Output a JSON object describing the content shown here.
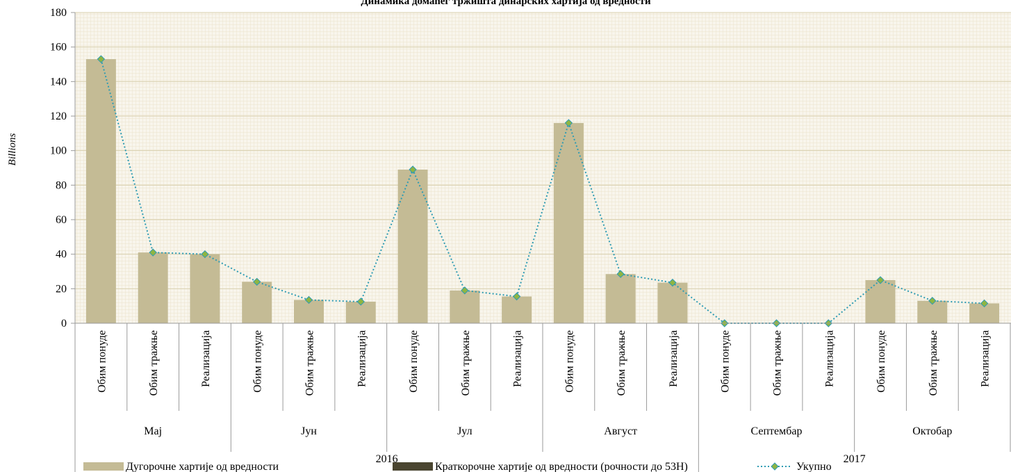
{
  "chart_data": {
    "type": "bar",
    "title": "Динамика домаћег тржишта динарских хартија од вредности",
    "ylabel": "Billions",
    "ylim": [
      0,
      180
    ],
    "yticks": [
      0,
      20,
      40,
      60,
      80,
      100,
      120,
      140,
      160,
      180
    ],
    "categories": [
      "Обим понуде",
      "Обим тражње",
      "Реализација",
      "Обим понуде",
      "Обим тражње",
      "Реализација",
      "Обим понуде",
      "Обим тражње",
      "Реализација",
      "Обим понуде",
      "Обим тражње",
      "Реализација",
      "Обим понуде",
      "Обим тражње",
      "Реализација",
      "Обим понуде",
      "Обим тражње",
      "Реализација"
    ],
    "months": [
      "Мај",
      "Јун",
      "Јул",
      "Август",
      "Септембар",
      "Октобар"
    ],
    "years": [
      {
        "label": "2016",
        "months": 4
      },
      {
        "label": "2017",
        "months": 2
      }
    ],
    "series": [
      {
        "name": "Дугорочне хартије од вредности",
        "type": "bar",
        "color": "#c4bb95",
        "values": [
          153,
          41,
          40,
          24,
          13.5,
          12.5,
          89,
          19,
          15.5,
          116,
          28.5,
          23.5,
          0,
          0,
          0,
          25,
          13,
          11.5
        ]
      },
      {
        "name": "Краткорочне хартије од вредности (рочности до 53Н)",
        "type": "bar",
        "color": "#4a4530",
        "values": [
          0,
          0,
          0,
          0,
          0,
          0,
          0,
          0,
          0,
          0,
          0,
          0,
          0,
          0,
          0,
          0,
          0,
          0
        ]
      },
      {
        "name": "Укупно",
        "type": "line",
        "color": "#2e9bb3",
        "marker_color": "#8fb542",
        "values": [
          153,
          41,
          40,
          24,
          13.5,
          12.5,
          89,
          19,
          15.5,
          116,
          28.5,
          23.5,
          0,
          0,
          0,
          25,
          13,
          11.5
        ]
      }
    ],
    "grid": true,
    "legend_position": "bottom"
  }
}
